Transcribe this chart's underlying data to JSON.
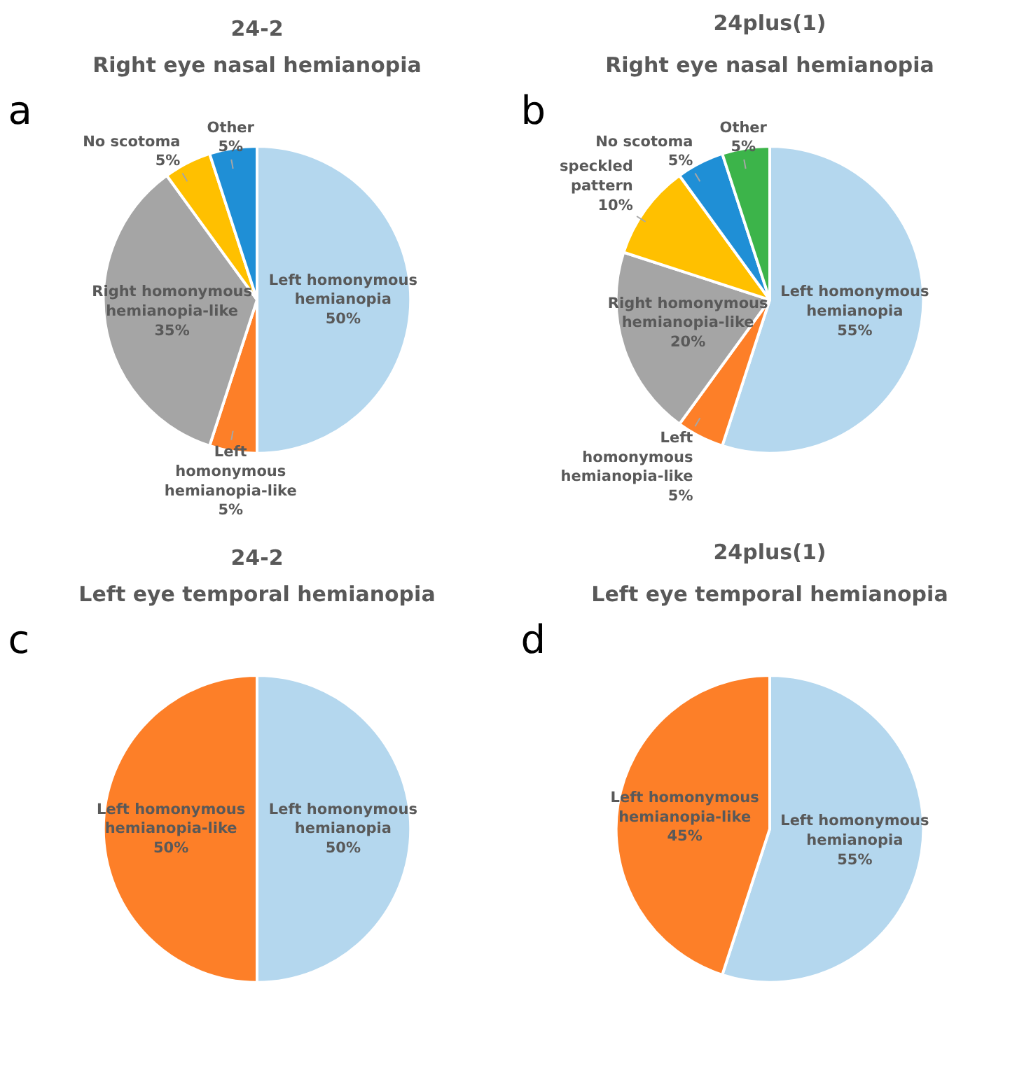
{
  "chart_data": [
    {
      "type": "pie",
      "title": "24-2",
      "subtitle": "Right eye nasal hemianopia",
      "annotations": [
        "a"
      ],
      "categories": [
        "Left homonymous hemianopia",
        "Left homonymous hemianopia-like",
        "Right homonymous hemianopia-like",
        "No scotoma",
        "Other"
      ],
      "values": [
        50,
        5,
        35,
        5,
        5
      ],
      "value_labels": [
        "50%",
        "5%",
        "35%",
        "5%",
        "5%"
      ],
      "colors": [
        "#b4d7ee",
        "#fd7f28",
        "#a5a5a5",
        "#ffc000",
        "#1f8fd6"
      ]
    },
    {
      "type": "pie",
      "title": "24plus(1)",
      "subtitle": "Right eye nasal hemianopia",
      "annotations": [
        "b"
      ],
      "categories": [
        "Left homonymous hemianopia",
        "Left homonymous hemianopia-like",
        "Right homonymous hemianopia-like",
        "speckled pattern",
        "No scotoma",
        "Other"
      ],
      "values": [
        55,
        5,
        20,
        10,
        5,
        5
      ],
      "value_labels": [
        "55%",
        "5%",
        "20%",
        "10%",
        "5%",
        "5%"
      ],
      "colors": [
        "#b4d7ee",
        "#fd7f28",
        "#a5a5a5",
        "#ffc000",
        "#1f8fd6",
        "#3cb44a"
      ]
    },
    {
      "type": "pie",
      "title": "24-2",
      "subtitle": "Left eye temporal hemianopia",
      "annotations": [
        "c"
      ],
      "categories": [
        "Left homonymous hemianopia",
        "Left homonymous hemianopia-like"
      ],
      "values": [
        50,
        50
      ],
      "value_labels": [
        "50%",
        "50%"
      ],
      "colors": [
        "#b4d7ee",
        "#fd7f28"
      ]
    },
    {
      "type": "pie",
      "title": "24plus(1)",
      "subtitle": "Left eye temporal hemianopia",
      "annotations": [
        "d"
      ],
      "categories": [
        "Left homonymous hemianopia",
        "Left homonymous hemianopia-like"
      ],
      "values": [
        55,
        45
      ],
      "value_labels": [
        "55%",
        "45%"
      ],
      "colors": [
        "#b4d7ee",
        "#fd7f28"
      ]
    }
  ]
}
